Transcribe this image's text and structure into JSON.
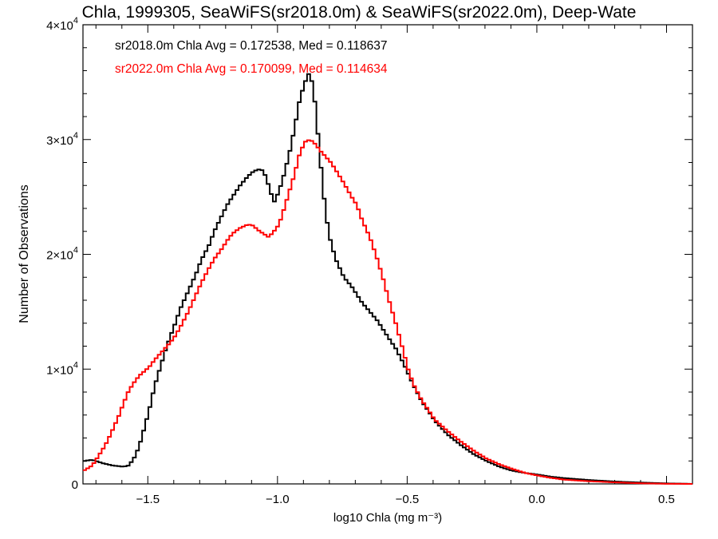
{
  "chart_data": {
    "type": "line",
    "title": "Chla, 1999305, SeaWiFS(sr2018.0m) & SeaWiFS(sr2022.0m), Deep-Wate",
    "xlabel": "log10 Chla (mg m⁻³)",
    "ylabel": "Number of Observations",
    "xlim": [
      -1.75,
      0.6
    ],
    "ylim": [
      0,
      40000
    ],
    "x_ticks": [
      -1.5,
      -1.0,
      -0.5,
      0.0,
      0.5
    ],
    "x_tick_labels": [
      "−1.5",
      "−1.0",
      "−0.5",
      "0.0",
      "0.5"
    ],
    "y_ticks": [
      {
        "value": 0,
        "mantissa": "0",
        "exponent": ""
      },
      {
        "value": 10000,
        "mantissa": "1×10",
        "exponent": "4"
      },
      {
        "value": 20000,
        "mantissa": "2×10",
        "exponent": "4"
      },
      {
        "value": 30000,
        "mantissa": "3×10",
        "exponent": "4"
      },
      {
        "value": 40000,
        "mantissa": "4×10",
        "exponent": "4"
      }
    ],
    "grid": false,
    "stats": [
      {
        "text": "sr2018.0m Chla Avg = 0.172538, Med = 0.118637",
        "color": "#000000"
      },
      {
        "text": "sr2022.0m Chla Avg = 0.170099, Med = 0.114634",
        "color": "#ff0000"
      }
    ],
    "series": [
      {
        "color": "#000000",
        "x": [
          -1.75,
          -1.72,
          -1.68,
          -1.64,
          -1.6,
          -1.58,
          -1.56,
          -1.54,
          -1.52,
          -1.5,
          -1.48,
          -1.46,
          -1.44,
          -1.42,
          -1.4,
          -1.38,
          -1.35,
          -1.32,
          -1.3,
          -1.27,
          -1.25,
          -1.22,
          -1.2,
          -1.18,
          -1.15,
          -1.12,
          -1.1,
          -1.08,
          -1.06,
          -1.04,
          -1.02,
          -1.0,
          -0.98,
          -0.96,
          -0.94,
          -0.92,
          -0.9,
          -0.88,
          -0.86,
          -0.84,
          -0.82,
          -0.8,
          -0.78,
          -0.75,
          -0.72,
          -0.7,
          -0.68,
          -0.65,
          -0.62,
          -0.6,
          -0.58,
          -0.55,
          -0.52,
          -0.5,
          -0.48,
          -0.45,
          -0.42,
          -0.4,
          -0.35,
          -0.3,
          -0.25,
          -0.2,
          -0.15,
          -0.1,
          -0.05,
          0.0,
          0.05,
          0.1,
          0.2,
          0.3,
          0.4,
          0.5,
          0.6
        ],
        "y": [
          2000,
          2100,
          1800,
          1600,
          1500,
          1600,
          2200,
          3200,
          4800,
          6500,
          8500,
          10000,
          11500,
          12800,
          14000,
          15300,
          16800,
          18300,
          19500,
          20800,
          22000,
          23400,
          24300,
          25000,
          26000,
          26800,
          27200,
          27400,
          27300,
          26000,
          24500,
          25500,
          27000,
          28800,
          31000,
          33500,
          35000,
          36000,
          33000,
          28000,
          23500,
          21000,
          19500,
          18000,
          17200,
          16500,
          15800,
          15000,
          14200,
          13500,
          12800,
          11800,
          10500,
          9500,
          8500,
          7200,
          6200,
          5500,
          4300,
          3400,
          2600,
          2000,
          1500,
          1150,
          950,
          800,
          620,
          500,
          330,
          200,
          110,
          40,
          0
        ]
      },
      {
        "color": "#ff0000",
        "x": [
          -1.75,
          -1.72,
          -1.7,
          -1.68,
          -1.66,
          -1.64,
          -1.62,
          -1.6,
          -1.58,
          -1.56,
          -1.54,
          -1.52,
          -1.5,
          -1.48,
          -1.46,
          -1.44,
          -1.42,
          -1.4,
          -1.38,
          -1.35,
          -1.32,
          -1.3,
          -1.27,
          -1.25,
          -1.22,
          -1.2,
          -1.18,
          -1.15,
          -1.12,
          -1.1,
          -1.08,
          -1.06,
          -1.04,
          -1.02,
          -1.0,
          -0.98,
          -0.96,
          -0.94,
          -0.92,
          -0.9,
          -0.88,
          -0.86,
          -0.84,
          -0.82,
          -0.8,
          -0.78,
          -0.75,
          -0.72,
          -0.7,
          -0.68,
          -0.65,
          -0.62,
          -0.6,
          -0.58,
          -0.55,
          -0.52,
          -0.5,
          -0.48,
          -0.45,
          -0.42,
          -0.4,
          -0.35,
          -0.3,
          -0.25,
          -0.2,
          -0.15,
          -0.1,
          -0.05,
          0.0,
          0.05,
          0.1,
          0.2,
          0.3,
          0.4,
          0.5,
          0.6
        ],
        "y": [
          1200,
          1600,
          2300,
          3000,
          3800,
          4800,
          5800,
          7000,
          8100,
          8800,
          9400,
          9800,
          10200,
          10800,
          11300,
          11800,
          12300,
          12900,
          13700,
          15000,
          16500,
          17500,
          18800,
          19600,
          20500,
          21200,
          21800,
          22300,
          22600,
          22500,
          22100,
          21800,
          21500,
          22000,
          22600,
          24000,
          25500,
          27000,
          28800,
          29800,
          30000,
          29600,
          29000,
          28500,
          28000,
          27300,
          26200,
          25000,
          24300,
          23000,
          21500,
          19500,
          18000,
          16300,
          14000,
          11500,
          9800,
          8600,
          7300,
          6300,
          5600,
          4600,
          3700,
          2900,
          2200,
          1700,
          1300,
          950,
          720,
          520,
          370,
          230,
          130,
          50,
          10,
          0
        ]
      }
    ]
  }
}
